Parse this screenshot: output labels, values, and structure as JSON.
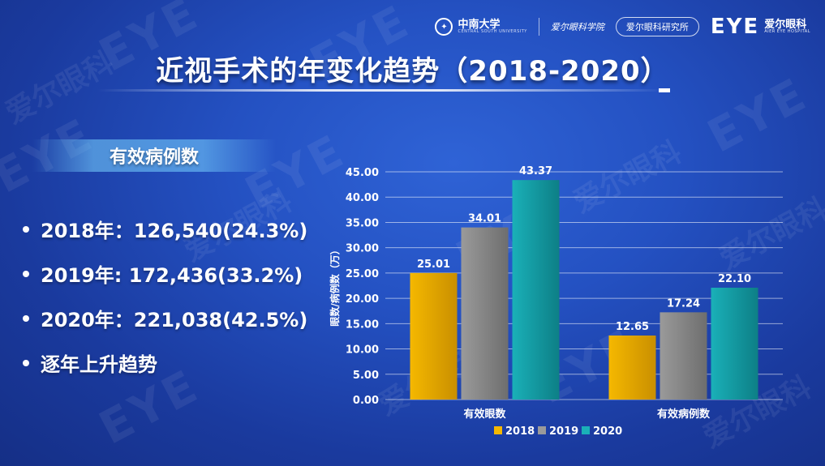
{
  "logos": {
    "university_name": "中南大学",
    "university_sub": "CENTRAL SOUTH UNIVERSITY",
    "aier_school": "爱尔眼科学院",
    "institute": "爱尔眼科研究所",
    "eye_mark": "EYE",
    "eye_cn": "爱尔眼科",
    "eye_sub": "AIER EYE HOSPITAL"
  },
  "title": "近视手术的年变化趋势（2018-2020）",
  "section_label": "有效病例数",
  "bullets": [
    "2018年：126,540(24.3%)",
    "2019年:  172,436(33.2%)",
    "2020年：221,038(42.5%)",
    "逐年上升趋势"
  ],
  "colors": {
    "series_2018": "#f5b800",
    "series_2019": "#9a9a9a",
    "series_2020": "#1ab0b8"
  },
  "chart_data": {
    "type": "bar",
    "categories": [
      "有效眼数",
      "有效病例数"
    ],
    "series": [
      {
        "name": "2018",
        "values": [
          25.01,
          12.65
        ]
      },
      {
        "name": "2019",
        "values": [
          34.01,
          17.24
        ]
      },
      {
        "name": "2020",
        "values": [
          43.37,
          22.1
        ]
      }
    ],
    "ylabel": "眼数/病例数（万）",
    "ylim": [
      0,
      45
    ],
    "yticks": [
      "0.00",
      "5.00",
      "10.00",
      "15.00",
      "20.00",
      "25.00",
      "30.00",
      "35.00",
      "40.00",
      "45.00"
    ],
    "data_labels": [
      [
        "25.01",
        "12.65"
      ],
      [
        "34.01",
        "17.24"
      ],
      [
        "43.37",
        "22.10"
      ]
    ],
    "grid": true,
    "legend_position": "bottom"
  }
}
